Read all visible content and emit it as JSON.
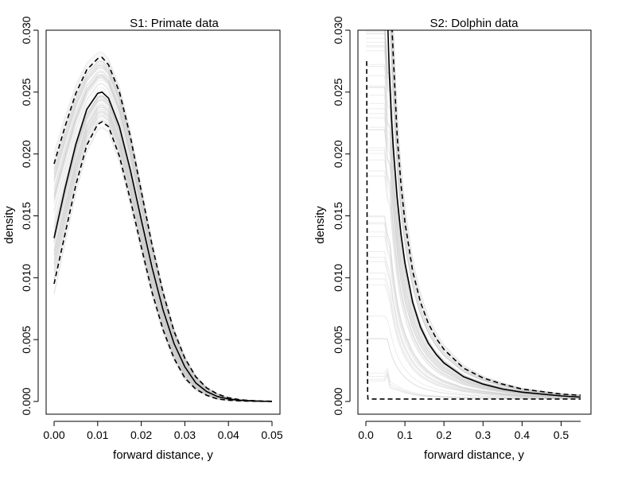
{
  "chart_data": [
    {
      "type": "line",
      "title": "S1: Primate data",
      "xlabel": "forward distance, y",
      "ylabel": "density",
      "xlim": [
        0,
        0.05
      ],
      "ylim": [
        0,
        0.03
      ],
      "xticks": [
        "0.00",
        "0.01",
        "0.02",
        "0.03",
        "0.04",
        "0.05"
      ],
      "yticks": [
        "0.000",
        "0.005",
        "0.010",
        "0.015",
        "0.020",
        "0.025",
        "0.030"
      ],
      "grid": false,
      "legend": "none",
      "colors": {
        "mean": "#000000",
        "bounds": "#000000",
        "draws": "#c8c8c8"
      },
      "series": [
        {
          "role": "mean",
          "style": "solid",
          "x": [
            0,
            0.0025,
            0.005,
            0.0075,
            0.01,
            0.011,
            0.0125,
            0.015,
            0.0175,
            0.02,
            0.0225,
            0.025,
            0.0275,
            0.03,
            0.0325,
            0.035,
            0.0375,
            0.04,
            0.0425,
            0.045,
            0.0475,
            0.05
          ],
          "y": [
            0.0132,
            0.0172,
            0.0208,
            0.0236,
            0.0249,
            0.025,
            0.0245,
            0.0222,
            0.0187,
            0.0147,
            0.0108,
            0.0074,
            0.0047,
            0.0028,
            0.0015,
            0.0008,
            0.0004,
            0.0002,
            0.0001,
            5e-05,
            2e-05,
            1e-05
          ]
        },
        {
          "role": "upper",
          "style": "dashed",
          "x": [
            0,
            0.0025,
            0.005,
            0.0075,
            0.01,
            0.011,
            0.0125,
            0.015,
            0.0175,
            0.02,
            0.0225,
            0.025,
            0.0275,
            0.03,
            0.0325,
            0.035,
            0.0375,
            0.04,
            0.0425,
            0.045,
            0.0475,
            0.05
          ],
          "y": [
            0.0192,
            0.0222,
            0.0249,
            0.0268,
            0.0277,
            0.0278,
            0.0272,
            0.025,
            0.0214,
            0.017,
            0.0126,
            0.0088,
            0.0057,
            0.0035,
            0.002,
            0.0011,
            0.0006,
            0.0003,
            0.00015,
            8e-05,
            4e-05,
            2e-05
          ]
        },
        {
          "role": "lower",
          "style": "dashed",
          "x": [
            0,
            0.0025,
            0.005,
            0.0075,
            0.01,
            0.011,
            0.0125,
            0.015,
            0.0175,
            0.02,
            0.0225,
            0.025,
            0.0275,
            0.03,
            0.0325,
            0.035,
            0.0375,
            0.04,
            0.0425,
            0.045,
            0.0475,
            0.05
          ],
          "y": [
            0.0095,
            0.0135,
            0.0175,
            0.0207,
            0.0224,
            0.0226,
            0.0222,
            0.0198,
            0.0163,
            0.0125,
            0.0088,
            0.0058,
            0.0035,
            0.0019,
            0.001,
            0.0005,
            0.0002,
            0.0001,
            5e-05,
            2e-05,
            1e-05,
            0
          ]
        }
      ]
    },
    {
      "type": "line",
      "title": "S2: Dolphin data",
      "xlabel": "forward distance, y",
      "ylabel": "density",
      "xlim": [
        0,
        0.55
      ],
      "ylim": [
        0,
        0.03
      ],
      "xticks": [
        "0.0",
        "0.1",
        "0.2",
        "0.3",
        "0.4",
        "0.5"
      ],
      "yticks": [
        "0.000",
        "0.005",
        "0.010",
        "0.015",
        "0.020",
        "0.025",
        "0.030"
      ],
      "grid": false,
      "legend": "none",
      "colors": {
        "mean": "#000000",
        "bounds": "#000000",
        "draws": "#c8c8c8"
      },
      "series": [
        {
          "role": "mean",
          "style": "solid",
          "x": [
            0.055,
            0.06,
            0.065,
            0.07,
            0.08,
            0.09,
            0.1,
            0.12,
            0.14,
            0.16,
            0.18,
            0.2,
            0.25,
            0.3,
            0.35,
            0.4,
            0.45,
            0.5,
            0.55
          ],
          "y": [
            0.0315,
            0.0265,
            0.0232,
            0.0205,
            0.0165,
            0.0135,
            0.0112,
            0.008,
            0.006,
            0.0047,
            0.0038,
            0.0031,
            0.002,
            0.0014,
            0.001,
            0.00075,
            0.0006,
            0.00045,
            0.00035
          ]
        },
        {
          "role": "upper",
          "style": "dashed",
          "x": [
            0.065,
            0.07,
            0.08,
            0.09,
            0.1,
            0.12,
            0.14,
            0.16,
            0.18,
            0.2,
            0.25,
            0.3,
            0.35,
            0.4,
            0.45,
            0.5,
            0.55
          ],
          "y": [
            0.0315,
            0.028,
            0.0215,
            0.0175,
            0.0145,
            0.0105,
            0.008,
            0.0063,
            0.0051,
            0.0042,
            0.0027,
            0.0019,
            0.0014,
            0.001,
            0.0008,
            0.0006,
            0.0005
          ]
        },
        {
          "role": "lower",
          "style": "dashed",
          "x": [
            0.002,
            0.003,
            0.004,
            0.0045,
            0.005,
            0.1,
            0.2,
            0.3,
            0.4,
            0.5,
            0.55
          ],
          "y": [
            0.0275,
            0.015,
            0.005,
            0.0008,
            0.0002,
            0.0002,
            0.0002,
            0.0002,
            0.0002,
            0.0002,
            0.0002
          ]
        }
      ]
    }
  ]
}
